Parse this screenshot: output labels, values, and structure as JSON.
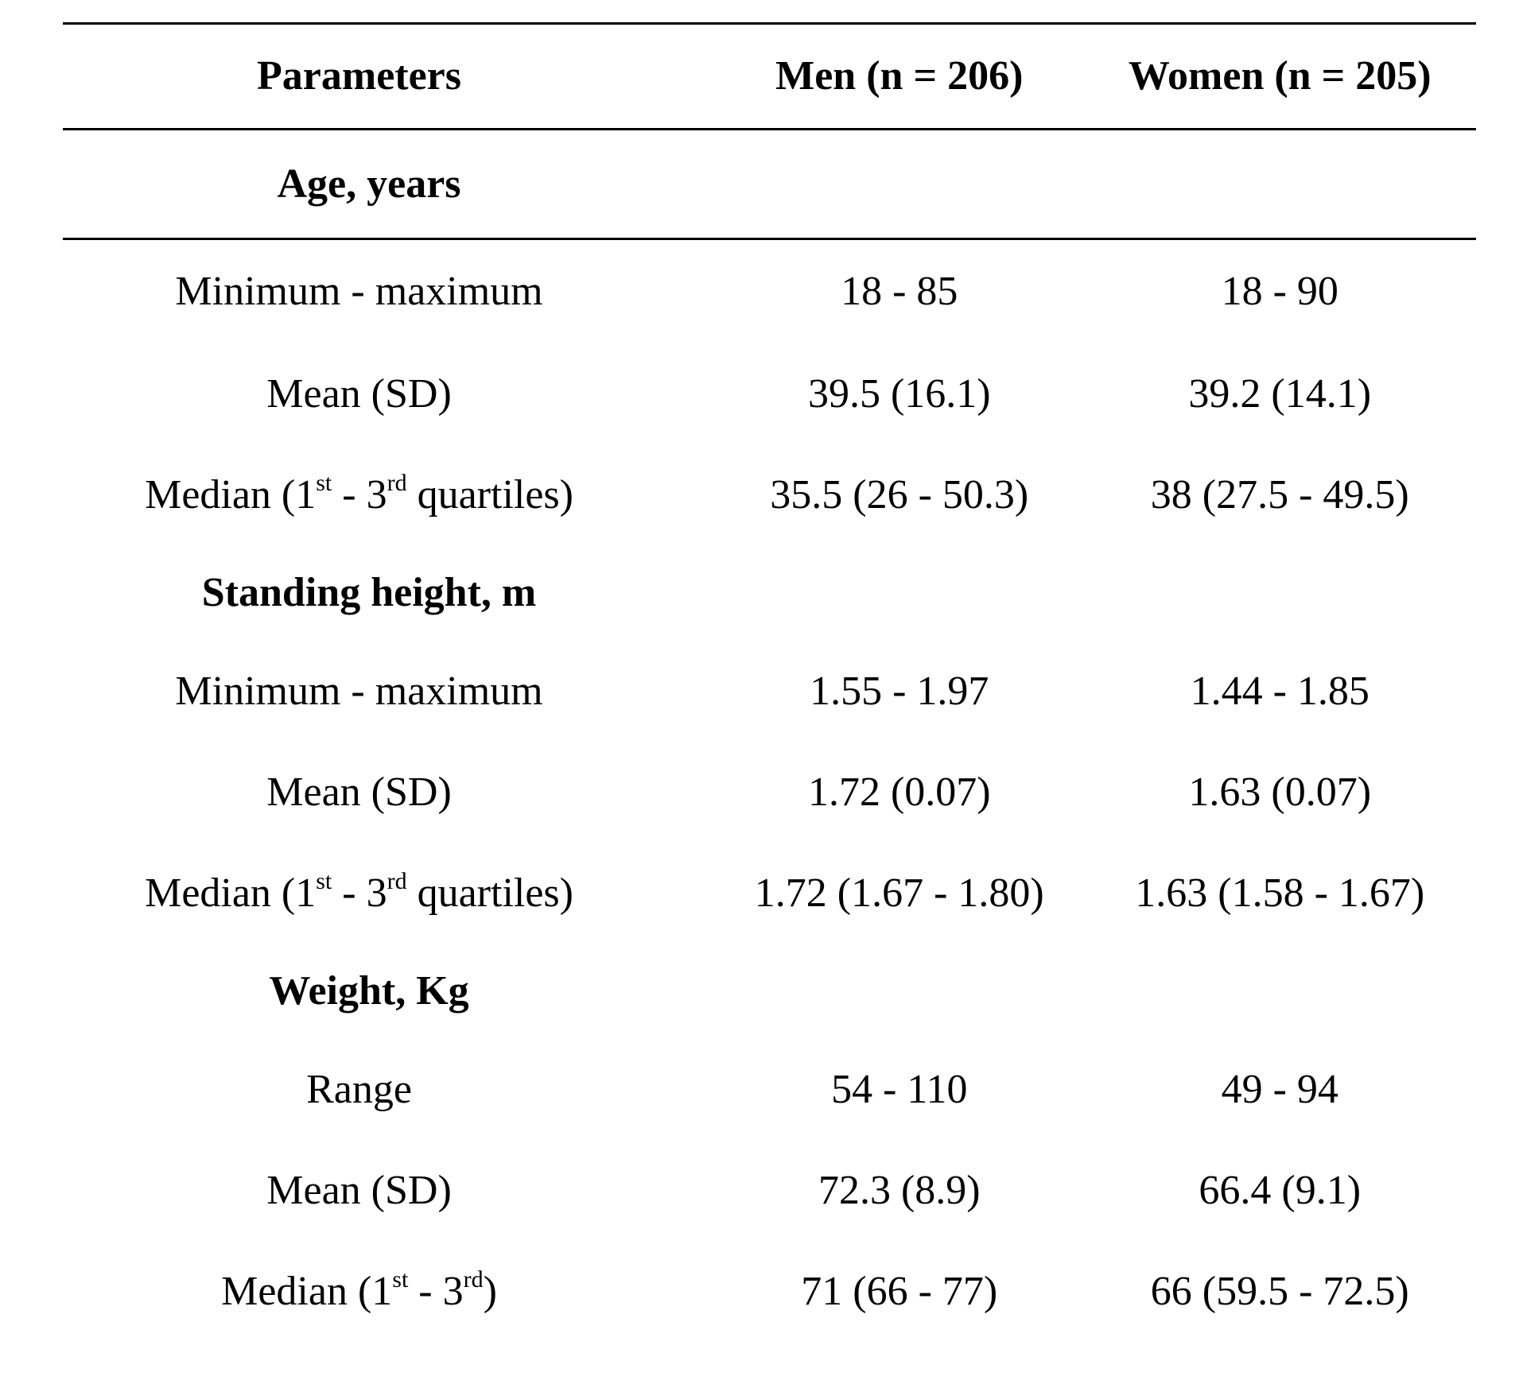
{
  "table": {
    "headers": {
      "parameters": "Parameters",
      "men": "Men (n = 206)",
      "women": "Women (n = 205)"
    },
    "groups": [
      {
        "title": "Age, years",
        "rows": [
          {
            "label": "Minimum - maximum",
            "men": "18 - 85",
            "women": "18 - 90"
          },
          {
            "label": "Mean (SD)",
            "men": "39.5 (16.1)",
            "women": "39.2 (14.1)"
          },
          {
            "label_pre": "Median (1",
            "label_sup1": "st",
            "label_mid": " - 3",
            "label_sup2": "rd",
            "label_post": " quartiles)",
            "men": "35.5 (26 - 50.3)",
            "women": "38 (27.5 - 49.5)"
          }
        ]
      },
      {
        "title": "Standing height, m",
        "rows": [
          {
            "label": "Minimum - maximum",
            "men": "1.55 - 1.97",
            "women": "1.44 - 1.85"
          },
          {
            "label": "Mean (SD)",
            "men": "1.72 (0.07)",
            "women": "1.63 (0.07)"
          },
          {
            "label_pre": "Median (1",
            "label_sup1": "st",
            "label_mid": " - 3",
            "label_sup2": "rd",
            "label_post": " quartiles)",
            "men": "1.72 (1.67 - 1.80)",
            "women": "1.63 (1.58 - 1.67)"
          }
        ]
      },
      {
        "title": "Weight, Kg",
        "rows": [
          {
            "label": "Range",
            "men": "54 - 110",
            "women": "49 - 94"
          },
          {
            "label": "Mean (SD)",
            "men": "72.3 (8.9)",
            "women": "66.4 (9.1)"
          },
          {
            "label_pre": "Median (1",
            "label_sup1": "st",
            "label_mid": " - 3",
            "label_sup2": "rd",
            "label_post": ")",
            "men": "71 (66 - 77)",
            "women": "66 (59.5 - 72.5)"
          }
        ]
      }
    ]
  }
}
